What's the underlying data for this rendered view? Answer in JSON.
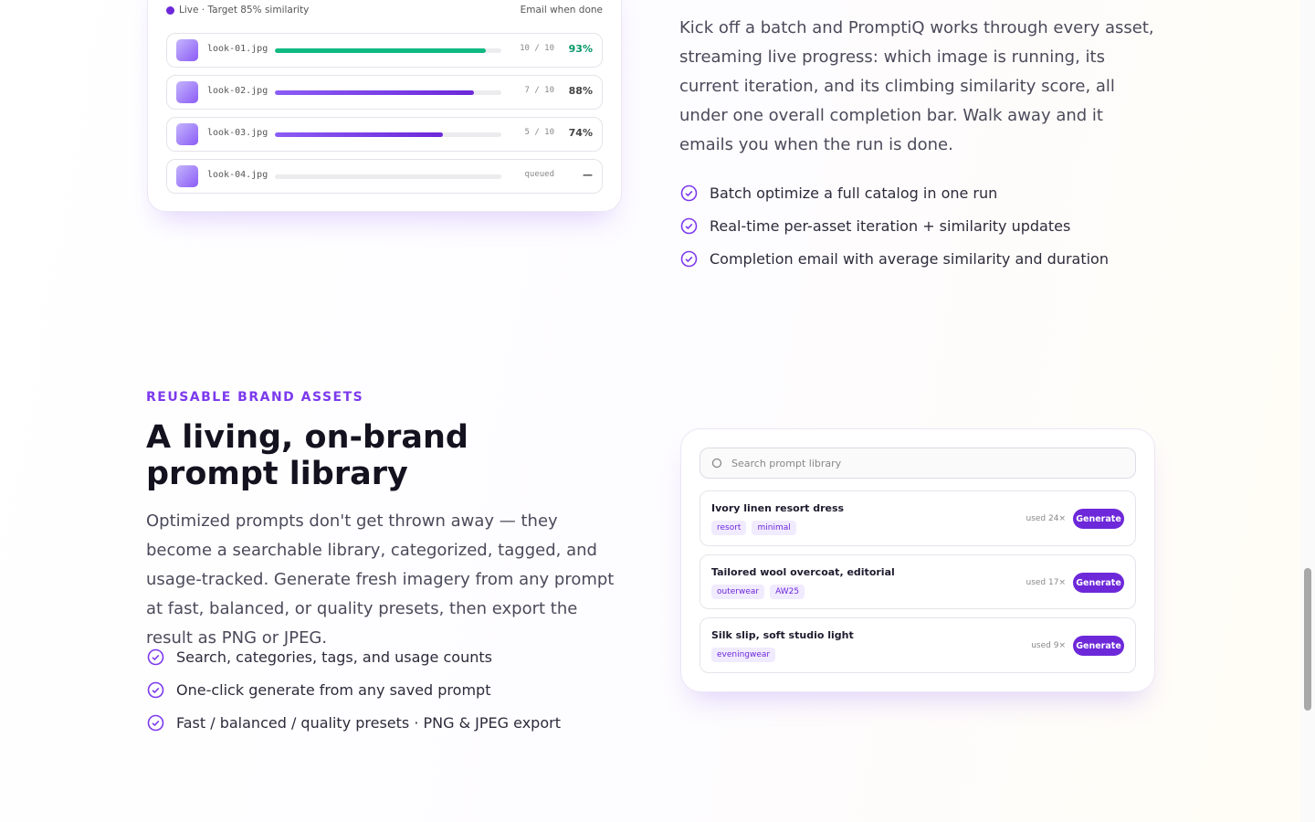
{
  "batch": {
    "status": "Live · Target 85% similarity",
    "notify": "Email when done",
    "items": [
      {
        "file": "look-01.jpg",
        "iterations": "10 / 10",
        "similarity": {
          "value": 93,
          "label": "93%"
        },
        "done": true
      },
      {
        "file": "look-02.jpg",
        "iterations": "7 / 10",
        "similarity": {
          "value": 88,
          "label": "88%"
        },
        "done": false
      },
      {
        "file": "look-03.jpg",
        "iterations": "5 / 10",
        "similarity": {
          "value": 74,
          "label": "74%"
        },
        "done": false
      },
      {
        "file": "look-04.jpg",
        "iterations": "queued",
        "similarity": "—",
        "done": false
      }
    ]
  },
  "batch_section": {
    "body": "Kick off a batch and PromptiQ works through every asset, streaming live progress: which image is running, its current iteration, and its climbing similarity score, all under one overall completion bar. Walk away and it emails you when the run is done.",
    "features": [
      "Batch optimize a full catalog in one run",
      "Real-time per-asset iteration + similarity updates",
      "Completion email with average similarity and duration"
    ]
  },
  "library_section": {
    "eyebrow": "REUSABLE BRAND ASSETS",
    "title": "A living, on-brand prompt library",
    "body": "Optimized prompts don't get thrown away — they become a searchable library, categorized, tagged, and usage-tracked. Generate fresh imagery from any prompt at fast, balanced, or quality presets, then export the result as PNG or JPEG.",
    "features": [
      "Search, categories, tags, and usage counts",
      "One-click generate from any saved prompt",
      "Fast / balanced / quality presets · PNG & JPEG export"
    ]
  },
  "library": {
    "search_placeholder": "Search prompt library",
    "button": "Generate",
    "prompts": [
      {
        "title": "Ivory linen resort dress",
        "tags": [
          "resort",
          "minimal"
        ],
        "usage": "used 24×"
      },
      {
        "title": "Tailored wool overcoat, editorial",
        "tags": [
          "outerwear",
          "AW25"
        ],
        "usage": "used 17×"
      },
      {
        "title": "Silk slip, soft studio light",
        "tags": [
          "eveningwear"
        ],
        "usage": "used 9×"
      }
    ]
  }
}
